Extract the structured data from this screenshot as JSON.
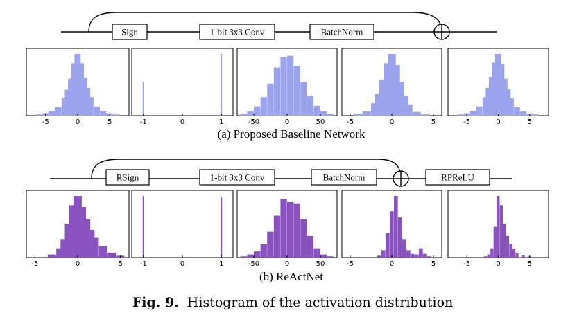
{
  "figure": {
    "label": "Fig. 9.",
    "text": "Histogram of the activation distribution"
  },
  "diagrams": [
    {
      "caption": "(a) Proposed Baseline Network",
      "blocks": [
        "Sign",
        "1-bit 3x3 Conv",
        "BatchNorm"
      ],
      "adder_symbol": "+",
      "color": "#9aa3ec"
    },
    {
      "caption": "(b) ReActNet",
      "blocks": [
        "RSign",
        "1-bit 3x3 Conv",
        "BatchNorm",
        "RPReLU"
      ],
      "adder_symbol": "+",
      "color": "#8a52bf"
    }
  ],
  "chart_data": [
    {
      "type": "bar",
      "row": "a",
      "panel": 1,
      "color": "#9aa3ec",
      "xlim": [
        -8,
        8
      ],
      "ticks": [
        -5,
        0,
        5
      ],
      "tick_labels": [
        "-5",
        "0",
        "5"
      ],
      "x": [
        -6,
        -5,
        -4,
        -3,
        -2,
        -1.5,
        -1,
        -0.5,
        0,
        0.5,
        1,
        1.5,
        2,
        3,
        4,
        5,
        6
      ],
      "values": [
        0.02,
        0.04,
        0.08,
        0.14,
        0.28,
        0.42,
        0.6,
        0.85,
        1.0,
        0.85,
        0.62,
        0.45,
        0.3,
        0.15,
        0.08,
        0.04,
        0.02
      ]
    },
    {
      "type": "bar",
      "row": "a",
      "panel": 2,
      "color": "#9aa3ec",
      "xlim": [
        -1.3,
        1.3
      ],
      "ticks": [
        -1,
        0,
        1
      ],
      "tick_labels": [
        "-1",
        "0",
        "1"
      ],
      "x": [
        -1,
        1
      ],
      "values": [
        0.55,
        1.0
      ]
    },
    {
      "type": "bar",
      "row": "a",
      "panel": 3,
      "color": "#9aa3ec",
      "xlim": [
        -75,
        75
      ],
      "ticks": [
        -50,
        0,
        50
      ],
      "tick_labels": [
        "-50",
        "0",
        "50"
      ],
      "x": [
        -65,
        -55,
        -45,
        -35,
        -25,
        -15,
        -5,
        5,
        15,
        25,
        35,
        45,
        55,
        65
      ],
      "values": [
        0.03,
        0.07,
        0.15,
        0.3,
        0.52,
        0.78,
        0.95,
        0.97,
        0.8,
        0.55,
        0.32,
        0.16,
        0.07,
        0.03
      ]
    },
    {
      "type": "bar",
      "row": "a",
      "panel": 4,
      "color": "#9aa3ec",
      "xlim": [
        -6,
        6
      ],
      "ticks": [
        -5,
        0,
        5
      ],
      "tick_labels": [
        "-5",
        "0",
        "5"
      ],
      "x": [
        -4,
        -3,
        -2,
        -1.5,
        -1,
        -0.5,
        0,
        0.5,
        1,
        1.5,
        2,
        3,
        4
      ],
      "values": [
        0.03,
        0.07,
        0.2,
        0.35,
        0.58,
        0.85,
        1.0,
        0.82,
        0.55,
        0.32,
        0.18,
        0.06,
        0.02
      ]
    },
    {
      "type": "bar",
      "row": "a",
      "panel": 5,
      "color": "#9aa3ec",
      "xlim": [
        -8,
        8
      ],
      "ticks": [
        -5,
        0,
        5
      ],
      "tick_labels": [
        "-5",
        "0",
        "5"
      ],
      "x": [
        -6,
        -5,
        -4,
        -3,
        -2,
        -1.5,
        -1,
        -0.5,
        0,
        0.5,
        1,
        1.5,
        2,
        3,
        4,
        5,
        6
      ],
      "values": [
        0.02,
        0.04,
        0.08,
        0.15,
        0.3,
        0.45,
        0.63,
        0.86,
        1.0,
        0.84,
        0.6,
        0.43,
        0.28,
        0.14,
        0.07,
        0.03,
        0.02
      ]
    },
    {
      "type": "bar",
      "row": "b",
      "panel": 1,
      "color": "#8a52bf",
      "xlim": [
        -6,
        6
      ],
      "ticks": [
        -5,
        0,
        5
      ],
      "tick_labels": [
        "-5",
        "0",
        "5"
      ],
      "x": [
        -3,
        -2,
        -1.5,
        -1,
        -0.5,
        0,
        0.5,
        1,
        1.5,
        2,
        3,
        4,
        5
      ],
      "values": [
        0.05,
        0.15,
        0.3,
        0.55,
        0.85,
        1.0,
        0.82,
        0.62,
        0.45,
        0.32,
        0.18,
        0.08,
        0.03
      ]
    },
    {
      "type": "bar",
      "row": "b",
      "panel": 2,
      "color": "#8a52bf",
      "xlim": [
        -1.3,
        1.3
      ],
      "ticks": [
        -1,
        0,
        1
      ],
      "tick_labels": [
        "-1",
        "0",
        "1"
      ],
      "x": [
        -1,
        1
      ],
      "values": [
        1.0,
        0.98
      ]
    },
    {
      "type": "bar",
      "row": "b",
      "panel": 3,
      "color": "#8a52bf",
      "xlim": [
        -75,
        75
      ],
      "ticks": [
        -50,
        0,
        50
      ],
      "tick_labels": [
        "-50",
        "0",
        "50"
      ],
      "x": [
        -65,
        -55,
        -45,
        -35,
        -25,
        -15,
        -5,
        5,
        15,
        25,
        35,
        45,
        55,
        65
      ],
      "values": [
        0.02,
        0.05,
        0.1,
        0.22,
        0.42,
        0.68,
        0.95,
        0.9,
        0.88,
        0.62,
        0.35,
        0.15,
        0.05,
        0.02
      ]
    },
    {
      "type": "bar",
      "row": "b",
      "panel": 4,
      "color": "#8a52bf",
      "xlim": [
        -6,
        6
      ],
      "ticks": [
        -5,
        0,
        5
      ],
      "tick_labels": [
        "-5",
        "0",
        "5"
      ],
      "x": [
        -1.5,
        -1,
        -0.5,
        0,
        0.5,
        1,
        1.5,
        2,
        2.5,
        3,
        3.5,
        4,
        4.5
      ],
      "values": [
        0.03,
        0.12,
        0.4,
        0.75,
        1.0,
        0.65,
        0.3,
        0.12,
        0.06,
        0.05,
        0.15,
        0.06,
        0.02
      ]
    },
    {
      "type": "bar",
      "row": "b",
      "panel": 5,
      "color": "#8a52bf",
      "xlim": [
        -8,
        8
      ],
      "ticks": [
        -5,
        0,
        5
      ],
      "tick_labels": [
        "-5",
        "0",
        "5"
      ],
      "x": [
        -2,
        -1.5,
        -1,
        -0.5,
        0,
        0.5,
        1,
        1.5,
        2,
        2.5,
        3,
        4,
        5,
        6
      ],
      "values": [
        0.02,
        0.05,
        0.15,
        0.5,
        1.0,
        0.85,
        0.55,
        0.35,
        0.22,
        0.14,
        0.08,
        0.04,
        0.02,
        0.01
      ]
    }
  ]
}
